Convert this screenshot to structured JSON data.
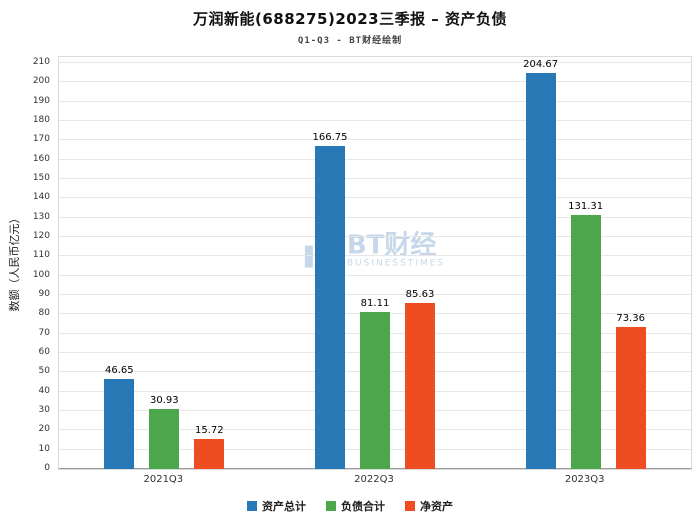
{
  "title": "万润新能(688275)2023三季报 – 资产负债",
  "subtitle": "Q1-Q3 - BT财经绘制",
  "watermark": {
    "brand": "BT财经",
    "sub": "BUSINESSTIMES"
  },
  "chart_data": {
    "type": "bar",
    "title": "万润新能(688275)2023三季报 – 资产负债",
    "subtitle": "Q1-Q3 - BT财经绘制",
    "categories": [
      "2021Q3",
      "2022Q3",
      "2023Q3"
    ],
    "series": [
      {
        "name": "资产总计",
        "color": "#2878b5",
        "values": [
          46.65,
          166.75,
          204.67
        ]
      },
      {
        "name": "负债合计",
        "color": "#4ca64c",
        "values": [
          30.93,
          81.11,
          131.31
        ]
      },
      {
        "name": "净资产",
        "color": "#ee4c21",
        "values": [
          15.72,
          85.63,
          73.36
        ]
      }
    ],
    "xlabel": "",
    "ylabel": "数额（人民币亿元）",
    "ylim": [
      0,
      210
    ],
    "yticks": [
      0,
      10,
      20,
      30,
      40,
      50,
      60,
      70,
      80,
      90,
      100,
      110,
      120,
      130,
      140,
      150,
      160,
      170,
      180,
      190,
      200,
      210
    ],
    "grid": true,
    "legend_position": "bottom"
  }
}
